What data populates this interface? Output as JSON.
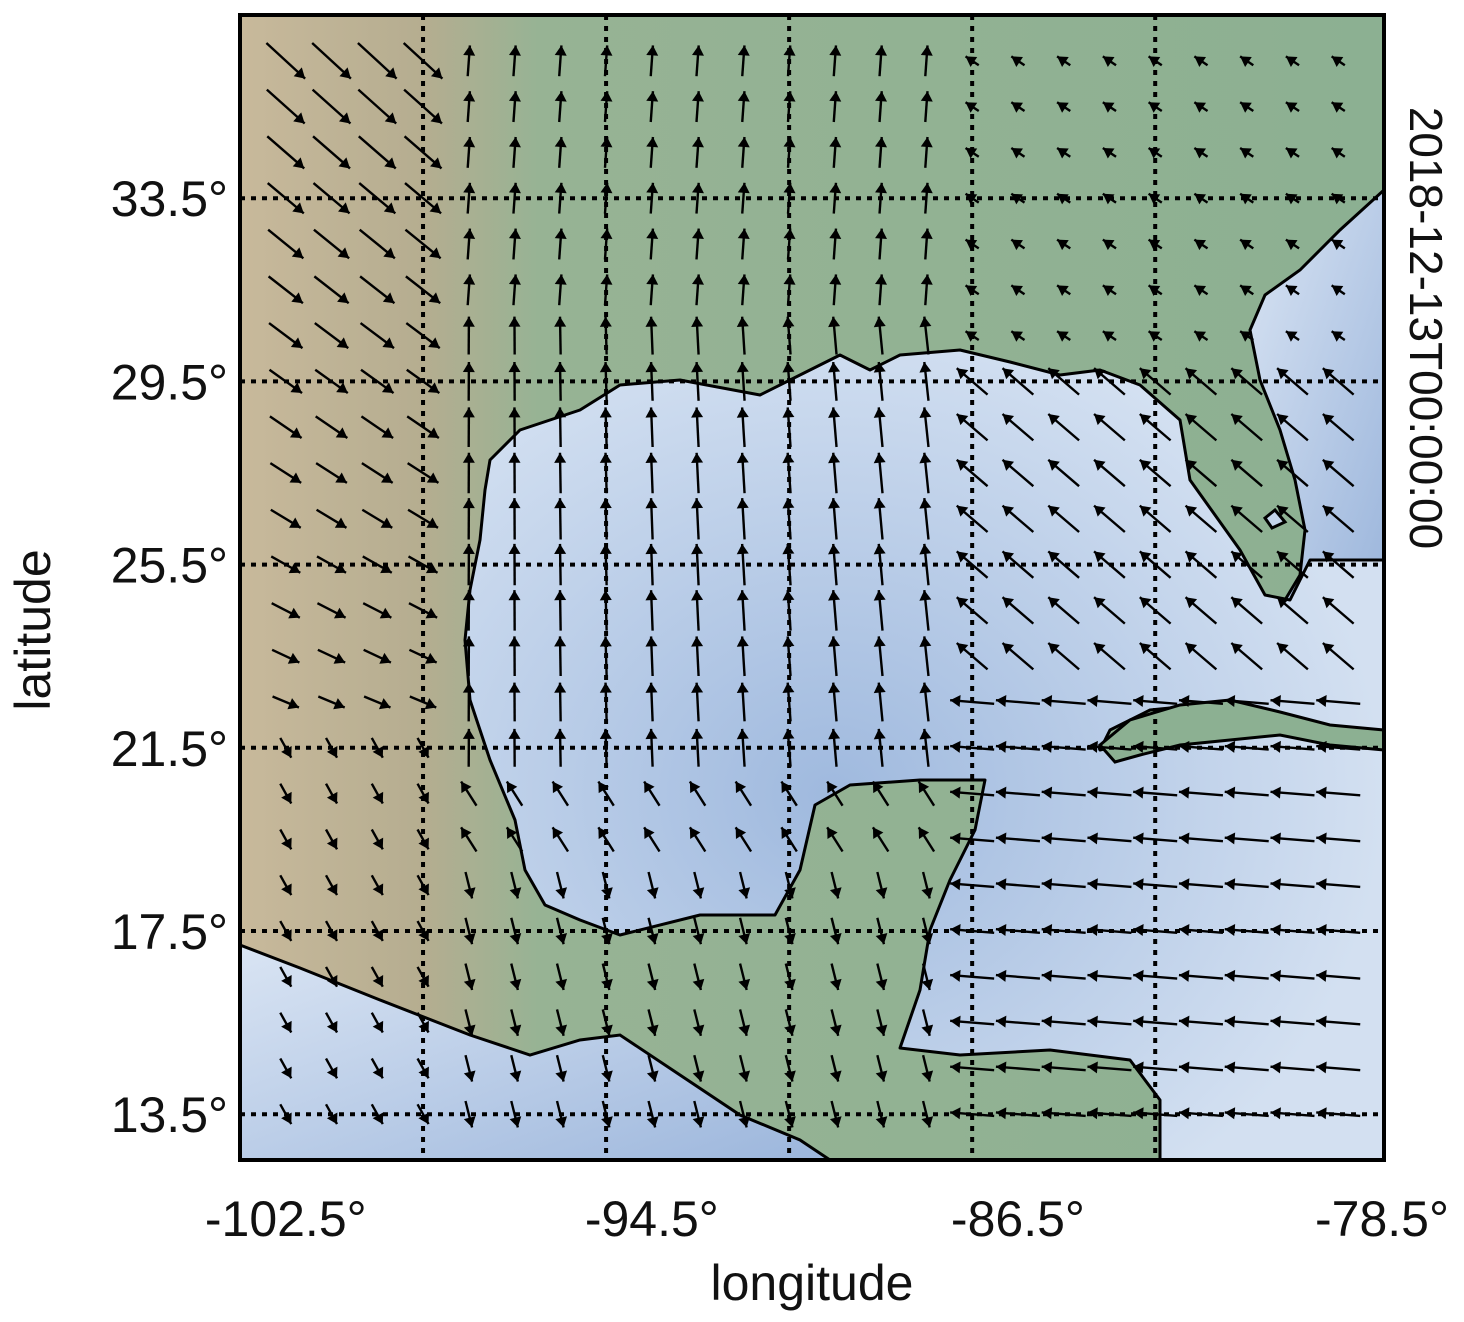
{
  "chart_data": {
    "type": "vector-field-map",
    "timestamp": "2018-12-13T00:00:00",
    "xlabel": "longitude",
    "ylabel": "latitude",
    "xlim": [
      -103.5,
      -78.5
    ],
    "ylim": [
      12.5,
      37.5
    ],
    "xticks": [
      {
        "value": -102.5,
        "label": "-102.5°"
      },
      {
        "value": -94.5,
        "label": "-94.5°"
      },
      {
        "value": -86.5,
        "label": "-86.5°"
      },
      {
        "value": -78.5,
        "label": "-78.5°"
      }
    ],
    "yticks": [
      {
        "value": 33.5,
        "label": "33.5°"
      },
      {
        "value": 29.5,
        "label": "29.5°"
      },
      {
        "value": 25.5,
        "label": "25.5°"
      },
      {
        "value": 21.5,
        "label": "21.5°"
      },
      {
        "value": 17.5,
        "label": "17.5°"
      },
      {
        "value": 13.5,
        "label": "13.5°"
      }
    ],
    "grid": true,
    "grid_style": "dotted",
    "vector_grid": {
      "lon_start": -102.5,
      "lat_start": 13.5,
      "spacing": 1.0,
      "columns": 24,
      "rows": 24
    },
    "colors": {
      "ocean": "#c3d4ea",
      "ocean_deep": "#90aed6",
      "land_green": "#8db292",
      "land_desert": "#c8b99b",
      "coastline": "#000000",
      "arrow": "#000000",
      "grid": "#000000"
    }
  }
}
